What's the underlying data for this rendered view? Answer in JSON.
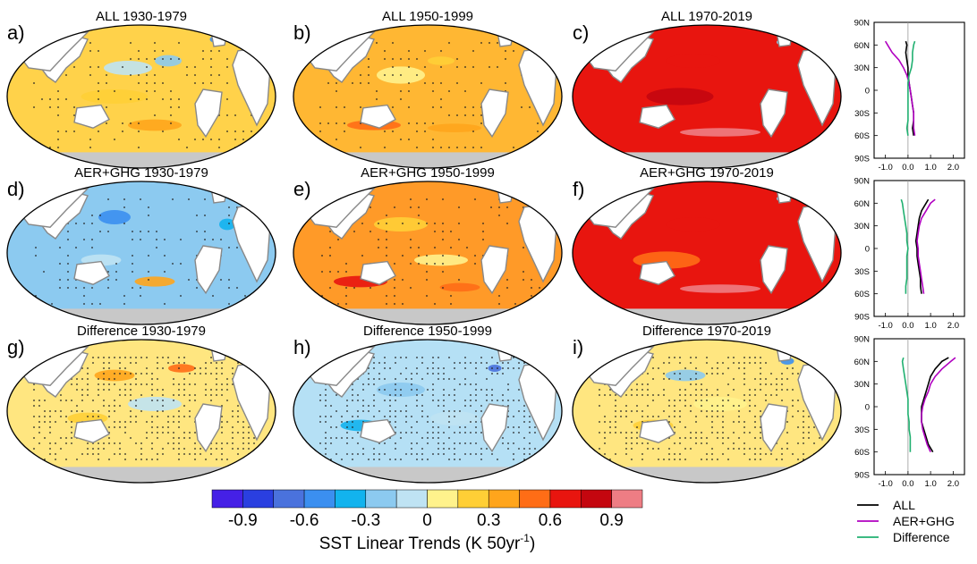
{
  "maps": [
    {
      "letter": "a)",
      "title": "ALL 1930-1979",
      "base": "#ffd24a",
      "dots": "sparse"
    },
    {
      "letter": "d)",
      "title": "AER+GHG 1930-1979",
      "base": "#8ccaf0",
      "dots": "sparse"
    },
    {
      "letter": "g)",
      "title": "Difference 1930-1979",
      "base": "#ffe680",
      "dots": "dense"
    },
    {
      "letter": "b)",
      "title": "ALL 1950-1999",
      "base": "#ffb733",
      "dots": "sparse"
    },
    {
      "letter": "e)",
      "title": "AER+GHG 1950-1999",
      "base": "#ff9a28",
      "dots": "sparse"
    },
    {
      "letter": "h)",
      "title": "Difference 1950-1999",
      "base": "#b5e0f5",
      "dots": "dense"
    },
    {
      "letter": "c)",
      "title": "ALL 1970-2019",
      "base": "#e8150f",
      "dots": "none"
    },
    {
      "letter": "f)",
      "title": "AER+GHG 1970-2019",
      "base": "#e8150f",
      "dots": "none"
    },
    {
      "letter": "i)",
      "title": "Difference 1970-2019",
      "base": "#ffe680",
      "dots": "dense"
    }
  ],
  "colorbar": {
    "colors": [
      "#4520e6",
      "#2a3fe0",
      "#4a72dd",
      "#3b8ff0",
      "#12b3ee",
      "#8ccaf0",
      "#bfe3f3",
      "#fff28c",
      "#ffcf36",
      "#ffa51c",
      "#ff6d16",
      "#e8150f",
      "#c4060f",
      "#ee7d84"
    ],
    "labels": [
      "-0.9",
      "-0.6",
      "-0.3",
      "0",
      "0.3",
      "0.6",
      "0.9"
    ],
    "title_main": "SST Linear Trends (K 50yr",
    "title_sup": "-1",
    "title_end": ")"
  },
  "chart_data": {
    "type": "line",
    "ylabels": [
      "90N",
      "60N",
      "30N",
      "0",
      "30S",
      "60S",
      "90S"
    ],
    "xlabels": [
      "-1.0",
      "0.0",
      "1.0",
      "2.0"
    ],
    "xlim": [
      -1.5,
      2.5
    ],
    "ylim": [
      -90,
      90
    ],
    "legend": [
      "ALL",
      "AER+GHG",
      "Difference"
    ],
    "colors": {
      "ALL": "#000000",
      "AER+GHG": "#b000c0",
      "Difference": "#20b070"
    },
    "panels": [
      {
        "period": "1930-1979",
        "lat": [
          65,
          60,
          50,
          40,
          30,
          20,
          10,
          0,
          -10,
          -20,
          -30,
          -40,
          -50,
          -60
        ],
        "series": [
          {
            "name": "ALL",
            "values": [
              -0.1,
              -0.05,
              -0.1,
              -0.05,
              0.0,
              0.0,
              0.05,
              0.1,
              0.15,
              0.2,
              0.25,
              0.25,
              0.2,
              0.25
            ]
          },
          {
            "name": "AER+GHG",
            "values": [
              -1.0,
              -0.9,
              -0.7,
              -0.4,
              -0.2,
              -0.05,
              0.05,
              0.1,
              0.15,
              0.2,
              0.25,
              0.25,
              0.25,
              0.3
            ]
          },
          {
            "name": "Difference",
            "values": [
              0.3,
              0.25,
              0.2,
              0.2,
              0.15,
              0.05,
              0.0,
              0.0,
              0.0,
              0.0,
              0.0,
              0.0,
              -0.05,
              0.0
            ]
          }
        ]
      },
      {
        "period": "1950-1999",
        "lat": [
          65,
          60,
          50,
          40,
          30,
          20,
          10,
          0,
          -10,
          -20,
          -30,
          -40,
          -50,
          -60
        ],
        "series": [
          {
            "name": "ALL",
            "values": [
              0.9,
              0.8,
              0.6,
              0.5,
              0.45,
              0.4,
              0.35,
              0.4,
              0.4,
              0.45,
              0.5,
              0.55,
              0.55,
              0.6
            ]
          },
          {
            "name": "AER+GHG",
            "values": [
              1.2,
              1.0,
              0.8,
              0.6,
              0.5,
              0.45,
              0.4,
              0.45,
              0.45,
              0.5,
              0.55,
              0.6,
              0.65,
              0.7
            ]
          },
          {
            "name": "Difference",
            "values": [
              -0.3,
              -0.25,
              -0.2,
              -0.15,
              -0.1,
              -0.05,
              -0.05,
              0.0,
              -0.05,
              -0.05,
              -0.05,
              -0.05,
              -0.1,
              -0.1
            ]
          }
        ]
      },
      {
        "period": "1970-2019",
        "lat": [
          65,
          60,
          50,
          40,
          30,
          20,
          10,
          0,
          -10,
          -20,
          -30,
          -40,
          -50,
          -60
        ],
        "series": [
          {
            "name": "ALL",
            "values": [
              1.8,
              1.5,
              1.2,
              1.0,
              0.9,
              0.8,
              0.7,
              0.6,
              0.6,
              0.6,
              0.7,
              0.8,
              0.9,
              1.1
            ]
          },
          {
            "name": "AER+GHG",
            "values": [
              2.1,
              1.9,
              1.5,
              1.2,
              1.0,
              0.9,
              0.75,
              0.65,
              0.6,
              0.6,
              0.65,
              0.75,
              0.85,
              1.0
            ]
          },
          {
            "name": "Difference",
            "values": [
              -0.2,
              -0.25,
              -0.2,
              -0.15,
              -0.1,
              -0.05,
              0.0,
              0.0,
              0.0,
              0.05,
              0.05,
              0.1,
              0.1,
              0.1
            ]
          }
        ]
      }
    ]
  }
}
